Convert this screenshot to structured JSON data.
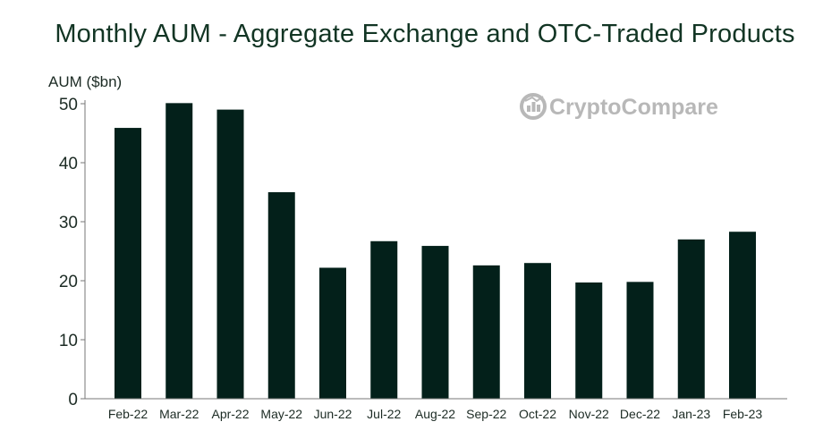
{
  "watermark": {
    "text": "CryptoCompare",
    "icon": "cryptocompare-logo-icon",
    "color": "#b8b8b8"
  },
  "colors": {
    "bar": "#03201a",
    "title": "#123524",
    "axis": "#777777"
  },
  "chart_data": {
    "type": "bar",
    "title": "Monthly AUM - Aggregate Exchange and OTC-Traded Products",
    "ylabel": "AUM ($bn)",
    "xlabel": "",
    "ylim": [
      0,
      50
    ],
    "yticks": [
      0,
      10,
      20,
      30,
      40,
      50
    ],
    "grid": false,
    "categories": [
      "Feb-22",
      "Mar-22",
      "Apr-22",
      "May-22",
      "Jun-22",
      "Jul-22",
      "Aug-22",
      "Sep-22",
      "Oct-22",
      "Nov-22",
      "Dec-22",
      "Jan-23",
      "Feb-23"
    ],
    "values": [
      45.9,
      50.1,
      49.0,
      35.0,
      22.2,
      26.7,
      25.9,
      22.6,
      23.0,
      19.7,
      19.8,
      27.0,
      28.3
    ]
  }
}
